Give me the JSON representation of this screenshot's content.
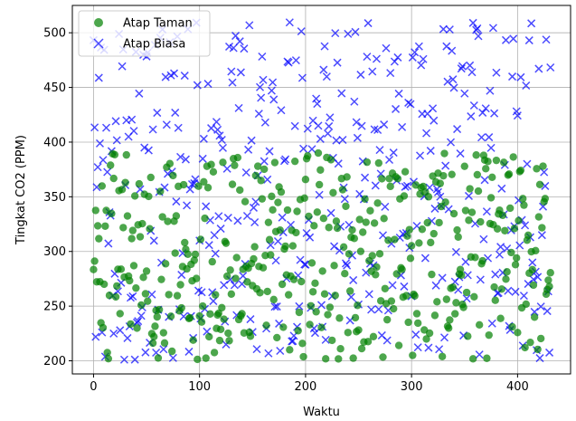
{
  "chart_data": {
    "type": "scatter",
    "title": "",
    "xlabel": "Waktu",
    "ylabel": "Tingkat CO2 (PPM)",
    "xlim": [
      -20,
      450
    ],
    "ylim": [
      188,
      525
    ],
    "xticks": [
      0,
      100,
      200,
      300,
      400
    ],
    "yticks": [
      200,
      250,
      300,
      350,
      400,
      450,
      500
    ],
    "grid": true,
    "legend_position": "upper-left",
    "x_count": 432,
    "series": [
      {
        "name": "Atap Taman",
        "marker": "circle",
        "color": "#008000",
        "y_range": [
          200,
          390
        ]
      },
      {
        "name": "Atap Biasa",
        "marker": "x",
        "color": "#0000ff",
        "y_range": [
          200,
          510
        ]
      }
    ]
  },
  "colors": {
    "atap_taman": "#008000",
    "atap_biasa": "#0000ff",
    "grid": "#b0b0b0",
    "axes": "#000000"
  }
}
